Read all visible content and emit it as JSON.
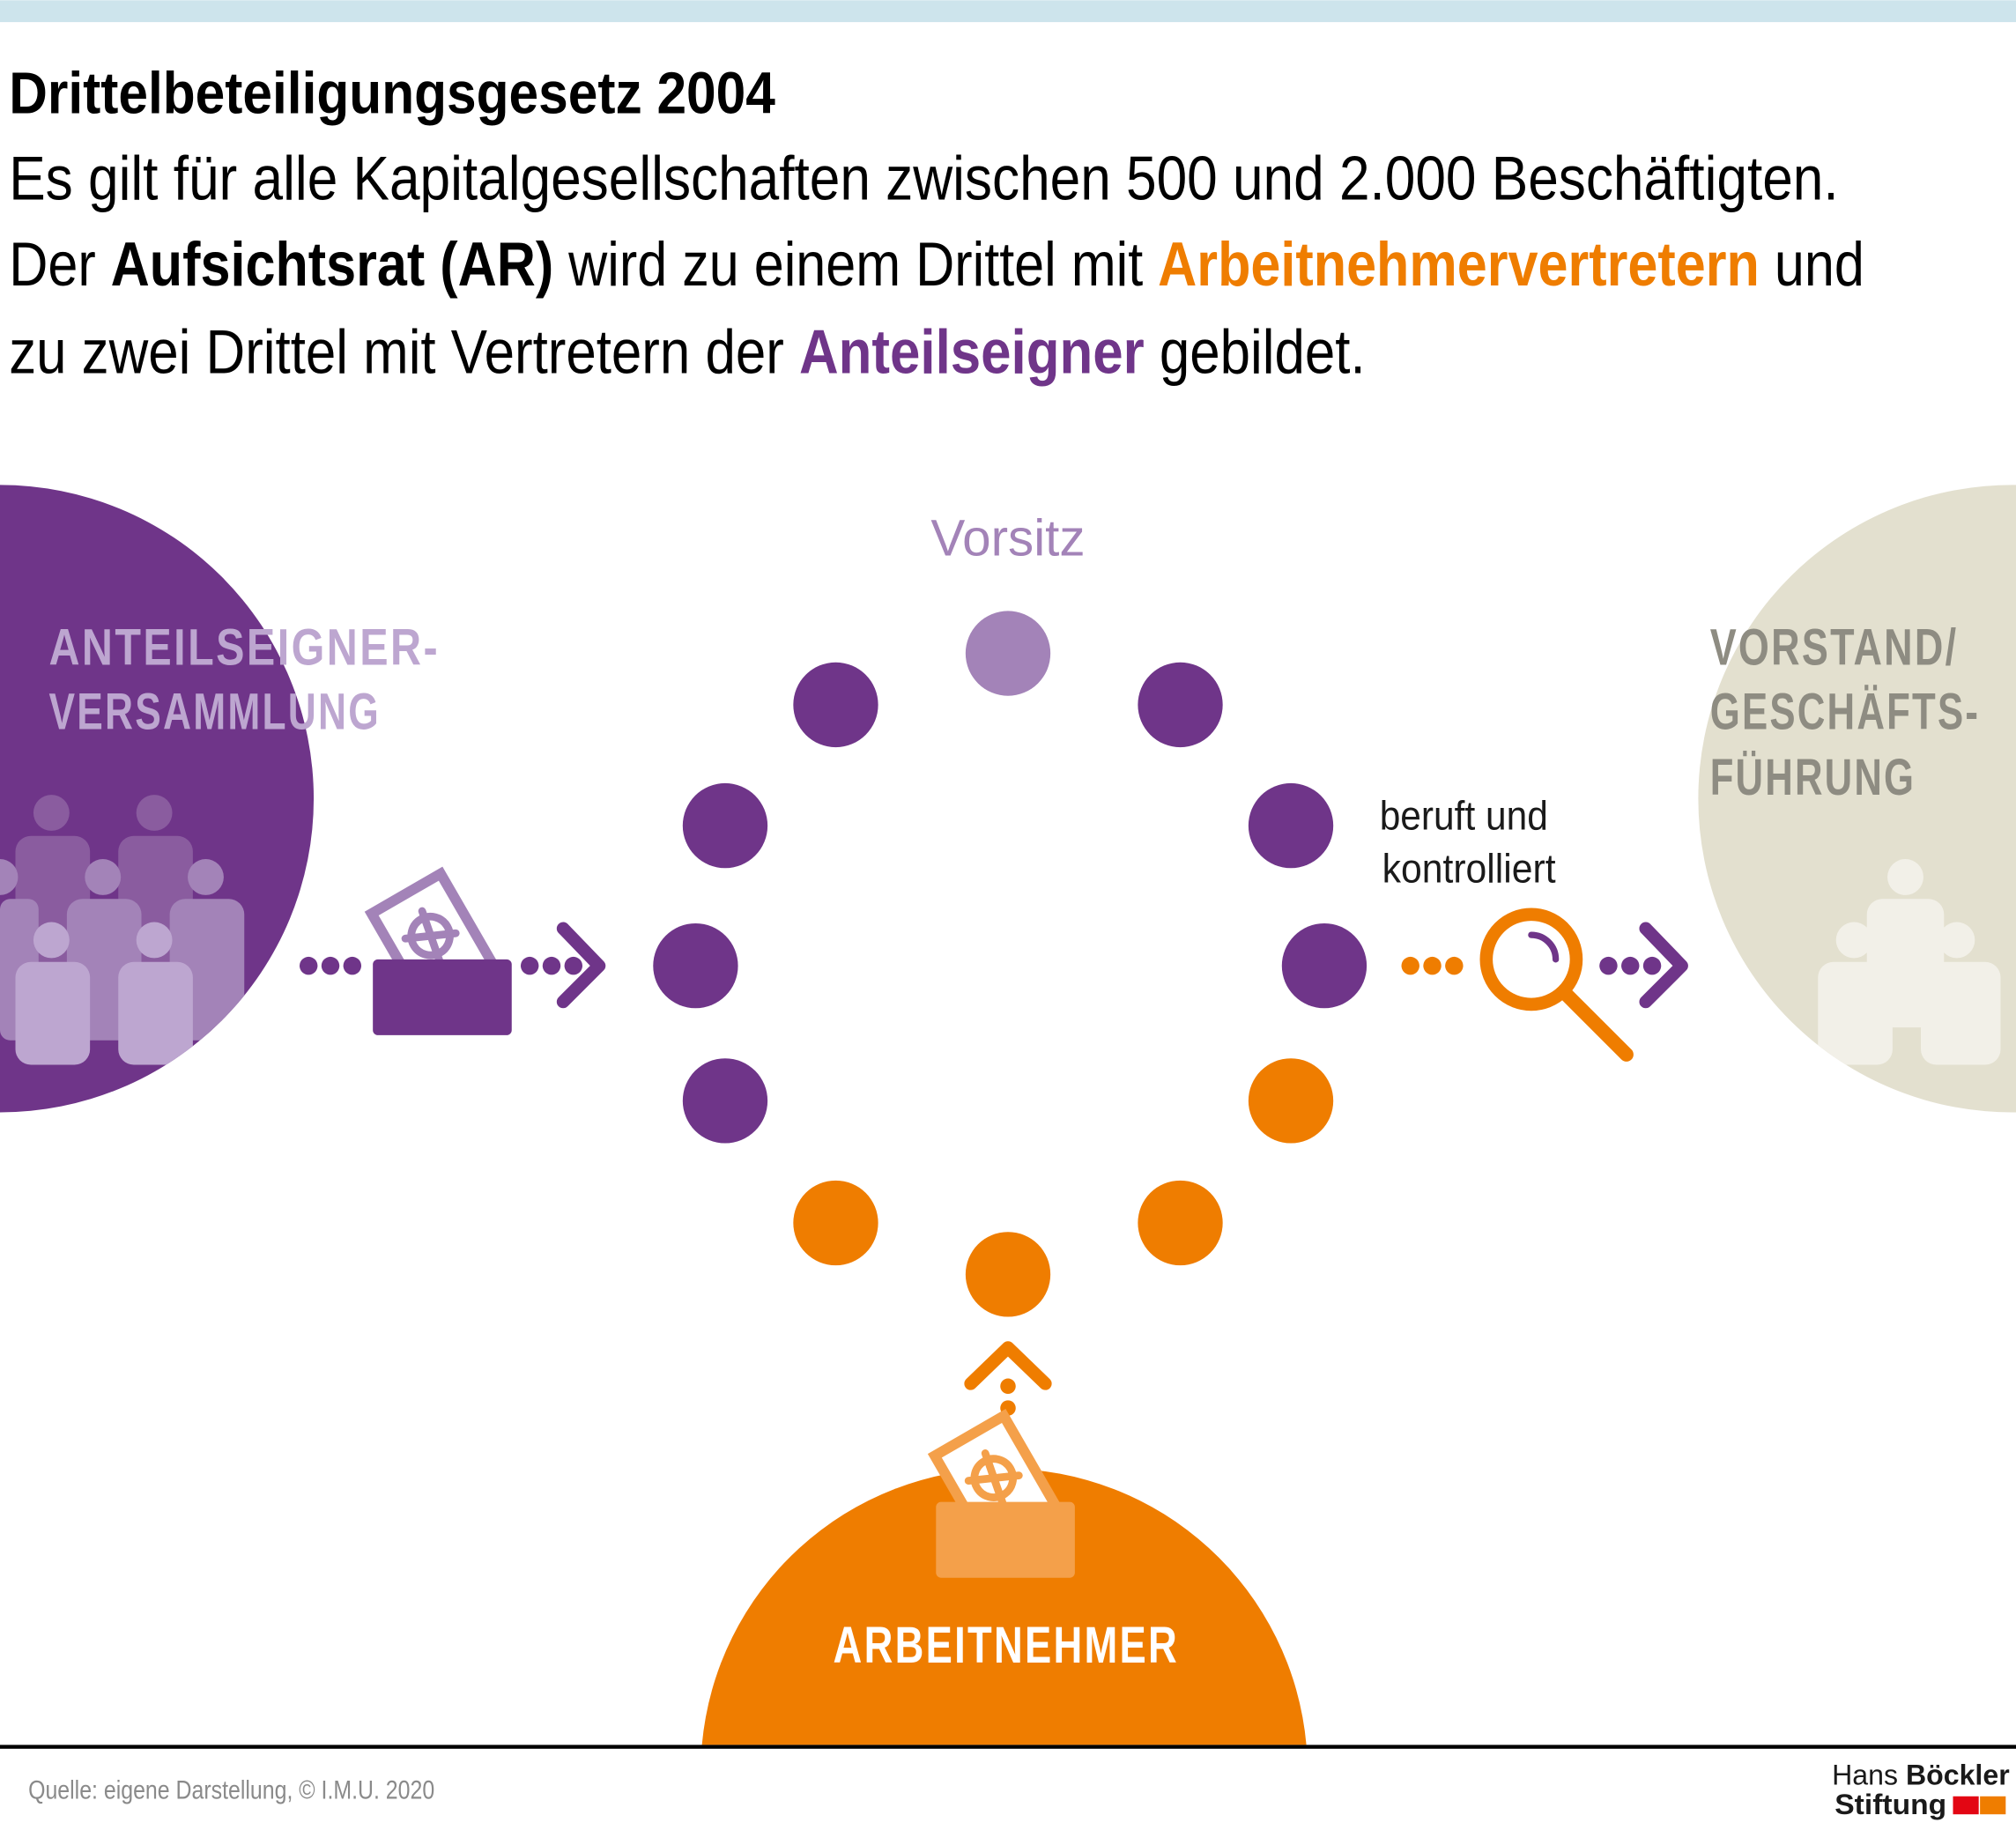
{
  "header": {
    "title": "Drittelbeteiligungsgesetz 2004",
    "line1": "Es gilt für alle Kapitalgesellschaften zwischen 500 und 2.000 Beschäftigten.",
    "line2_a": "Der ",
    "line2_b": "Aufsichtsrat (AR)",
    "line2_c": " wird zu einem Drittel mit ",
    "line2_d": "Arbeitnehmervertretern",
    "line2_e": " und",
    "line3_a": "zu zwei Drittel mit Vertretern der ",
    "line3_b": "Anteilseigner",
    "line3_c": " gebildet."
  },
  "diagram": {
    "chair_label": "Vorsitz",
    "shareholders_line1": "ANTEILSEIGNER-",
    "shareholders_line2": "VERSAMMLUNG",
    "board_line1": "VORSTAND/",
    "board_line2": "GESCHÄFTS-",
    "board_line3": "FÜHRUNG",
    "employees_label": "ARBEITNEHMER",
    "relation_line1": "beruft und",
    "relation_line2": "kontrolliert",
    "seats": {
      "chair": 1,
      "shareholder_reps": 8,
      "employee_reps": 4
    }
  },
  "colors": {
    "shareholders": "#6f3589",
    "chair": "#a383b8",
    "employees": "#ef7d00",
    "board": "#e3e0cf",
    "top_bar": "#cde4ec"
  },
  "footer": {
    "source": "Quelle: eigene Darstellung, © I.M.U. 2020",
    "logo_line1_a": "Hans ",
    "logo_line1_b": "Böckler",
    "logo_line2": "Stiftung"
  }
}
